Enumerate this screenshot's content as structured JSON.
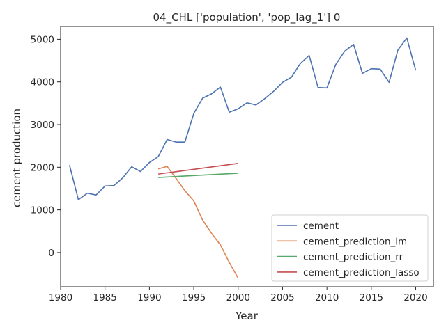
{
  "chart_data": {
    "type": "line",
    "title": "04_CHL ['population', 'pop_lag_1'] 0",
    "xlabel": "Year",
    "ylabel": "cement production",
    "xlim": [
      1980,
      2022
    ],
    "ylim": [
      -800,
      5300
    ],
    "xticks": [
      1980,
      1985,
      1990,
      1995,
      2000,
      2005,
      2010,
      2015,
      2020
    ],
    "yticks": [
      0,
      1000,
      2000,
      3000,
      4000,
      5000
    ],
    "grid": false,
    "legend_position": "lower-right",
    "series": [
      {
        "name": "cement",
        "color": "#4c72b0",
        "x": [
          1981,
          1982,
          1983,
          1984,
          1985,
          1986,
          1987,
          1988,
          1989,
          1990,
          1991,
          1992,
          1993,
          1994,
          1995,
          1996,
          1997,
          1998,
          1999,
          2000,
          2001,
          2002,
          2003,
          2004,
          2005,
          2006,
          2007,
          2008,
          2009,
          2010,
          2011,
          2012,
          2013,
          2014,
          2015,
          2016,
          2017,
          2018,
          2019,
          2020
        ],
        "y": [
          2050,
          1240,
          1390,
          1350,
          1560,
          1570,
          1750,
          2010,
          1900,
          2110,
          2250,
          2650,
          2590,
          2590,
          3260,
          3620,
          3720,
          3880,
          3290,
          3370,
          3510,
          3460,
          3610,
          3780,
          3990,
          4110,
          4430,
          4620,
          3870,
          3860,
          4410,
          4720,
          4880,
          4200,
          4310,
          4300,
          3990,
          4750,
          5030,
          4270
        ]
      },
      {
        "name": "cement_prediction_lm",
        "color": "#dd8452",
        "x": [
          1991,
          1992,
          1993,
          1994,
          1995,
          1996,
          1997,
          1998,
          1999,
          2000
        ],
        "y": [
          1960,
          2020,
          1740,
          1450,
          1210,
          760,
          450,
          180,
          -230,
          -600
        ]
      },
      {
        "name": "cement_prediction_rr",
        "color": "#55a868",
        "x": [
          1991,
          2000
        ],
        "y": [
          1760,
          1860
        ]
      },
      {
        "name": "cement_prediction_lasso",
        "color": "#c44e52",
        "x": [
          1991,
          2000
        ],
        "y": [
          1840,
          2090
        ]
      }
    ]
  }
}
